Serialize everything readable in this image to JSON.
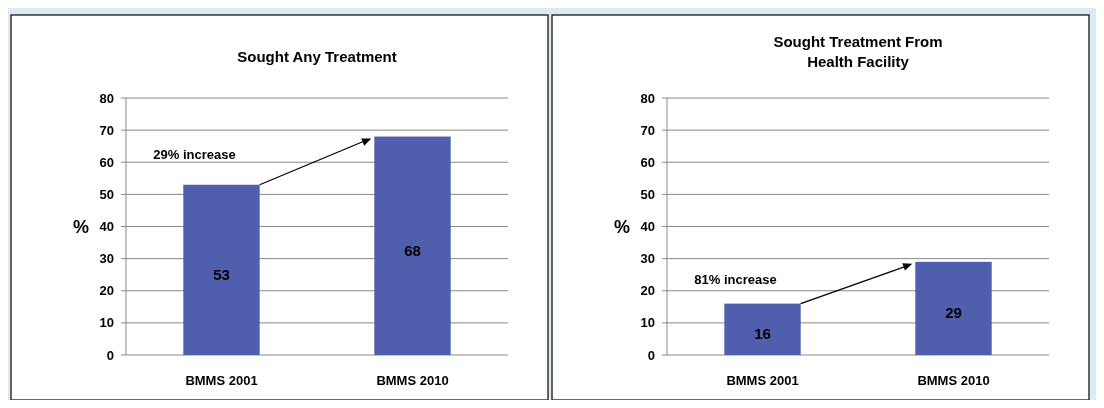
{
  "chart_data": [
    {
      "type": "bar",
      "title": "Sought Any Treatment",
      "ylabel": "%",
      "categories": [
        "BMMS 2001",
        "BMMS 2010"
      ],
      "values": [
        53,
        68
      ],
      "color": "#4f5fad",
      "ylim": [
        0,
        80
      ],
      "yticks": [
        0,
        10,
        20,
        30,
        40,
        50,
        60,
        70,
        80
      ],
      "grid": "y",
      "data_labels": true,
      "annotations": [
        "29% increase"
      ]
    },
    {
      "type": "bar",
      "title": "Sought Treatment From Health Facility",
      "ylabel": "%",
      "categories": [
        "BMMS 2001",
        "BMMS 2010"
      ],
      "values": [
        16,
        29
      ],
      "color": "#4f5fad",
      "ylim": [
        0,
        80
      ],
      "yticks": [
        0,
        10,
        20,
        30,
        40,
        50,
        60,
        70,
        80
      ],
      "grid": "y",
      "data_labels": true,
      "annotations": [
        "81% increase"
      ]
    }
  ]
}
